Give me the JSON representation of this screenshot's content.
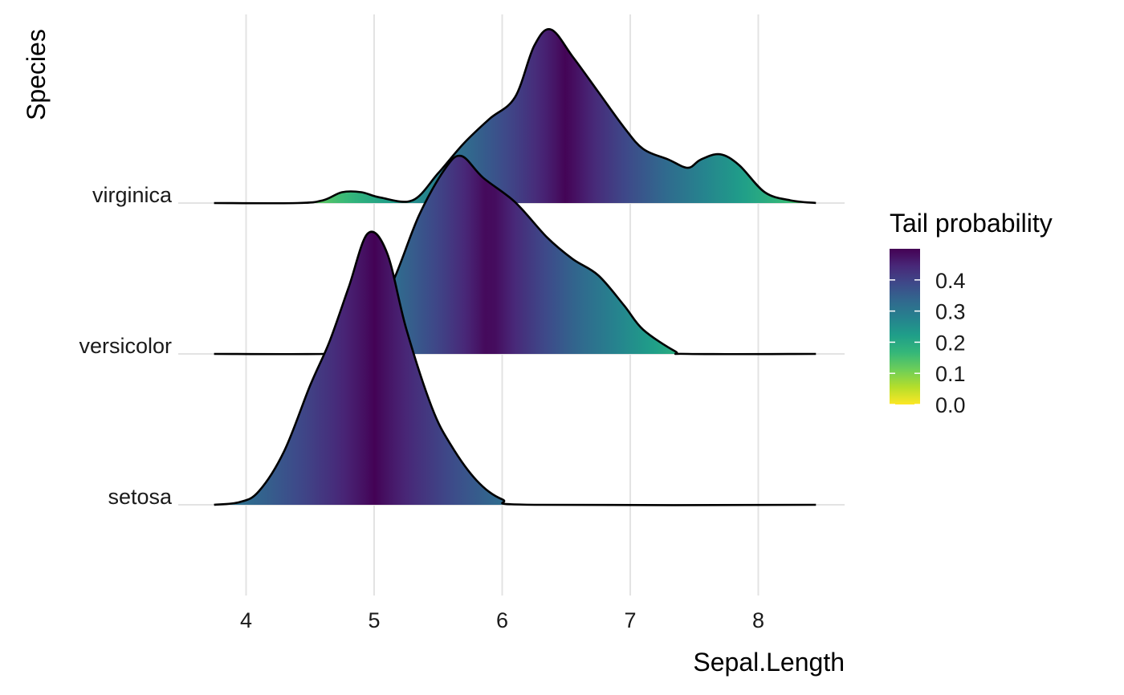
{
  "chart_data": {
    "type": "ridgeline",
    "title": "",
    "xlabel": "Sepal.Length",
    "ylabel": "Species",
    "x_ticks": [
      "4",
      "5",
      "6",
      "7",
      "8"
    ],
    "xlim": [
      3.75,
      8.45
    ],
    "grid": true,
    "fill": "tail probability, viridis reversed",
    "series": [
      {
        "name": "setosa",
        "median": 5.0,
        "points": [
          [
            3.75,
            0.0
          ],
          [
            3.95,
            0.01
          ],
          [
            4.1,
            0.05
          ],
          [
            4.3,
            0.2
          ],
          [
            4.5,
            0.44
          ],
          [
            4.65,
            0.6
          ],
          [
            4.8,
            0.8
          ],
          [
            4.95,
            1.0
          ],
          [
            5.1,
            0.93
          ],
          [
            5.25,
            0.65
          ],
          [
            5.45,
            0.36
          ],
          [
            5.6,
            0.22
          ],
          [
            5.8,
            0.09
          ],
          [
            6.0,
            0.02
          ],
          [
            6.25,
            0.0
          ],
          [
            8.45,
            0.0
          ]
        ]
      },
      {
        "name": "versicolor",
        "median": 5.9,
        "points": [
          [
            3.75,
            0.0
          ],
          [
            4.6,
            0.0
          ],
          [
            4.8,
            0.01
          ],
          [
            4.95,
            0.09
          ],
          [
            5.15,
            0.27
          ],
          [
            5.35,
            0.51
          ],
          [
            5.55,
            0.68
          ],
          [
            5.68,
            0.73
          ],
          [
            5.85,
            0.65
          ],
          [
            6.1,
            0.56
          ],
          [
            6.35,
            0.43
          ],
          [
            6.55,
            0.35
          ],
          [
            6.75,
            0.29
          ],
          [
            6.95,
            0.18
          ],
          [
            7.1,
            0.09
          ],
          [
            7.35,
            0.01
          ],
          [
            7.45,
            0.0
          ],
          [
            8.45,
            0.0
          ]
        ]
      },
      {
        "name": "virginica",
        "median": 6.5,
        "points": [
          [
            3.75,
            0.0
          ],
          [
            4.4,
            0.0
          ],
          [
            4.6,
            0.01
          ],
          [
            4.75,
            0.04
          ],
          [
            4.9,
            0.04
          ],
          [
            5.05,
            0.02
          ],
          [
            5.3,
            0.01
          ],
          [
            5.5,
            0.11
          ],
          [
            5.7,
            0.22
          ],
          [
            5.9,
            0.31
          ],
          [
            6.1,
            0.39
          ],
          [
            6.25,
            0.58
          ],
          [
            6.38,
            0.64
          ],
          [
            6.55,
            0.54
          ],
          [
            6.75,
            0.41
          ],
          [
            6.95,
            0.28
          ],
          [
            7.1,
            0.2
          ],
          [
            7.3,
            0.16
          ],
          [
            7.45,
            0.13
          ],
          [
            7.55,
            0.16
          ],
          [
            7.7,
            0.18
          ],
          [
            7.85,
            0.14
          ],
          [
            8.05,
            0.04
          ],
          [
            8.25,
            0.01
          ],
          [
            8.45,
            0.0
          ]
        ]
      }
    ],
    "legend": {
      "title": "Tail probability",
      "ticks": [
        "0.0",
        "0.1",
        "0.2",
        "0.3",
        "0.4"
      ],
      "range": [
        0,
        0.5
      ],
      "position": "right"
    },
    "colors": {
      "viridis": [
        "#440154",
        "#482878",
        "#3e4989",
        "#31688e",
        "#26828e",
        "#1f9e89",
        "#35b779",
        "#6ece58",
        "#b5de2b",
        "#fde725"
      ],
      "grid": "#e3e3e3",
      "outline": "#000000"
    }
  }
}
